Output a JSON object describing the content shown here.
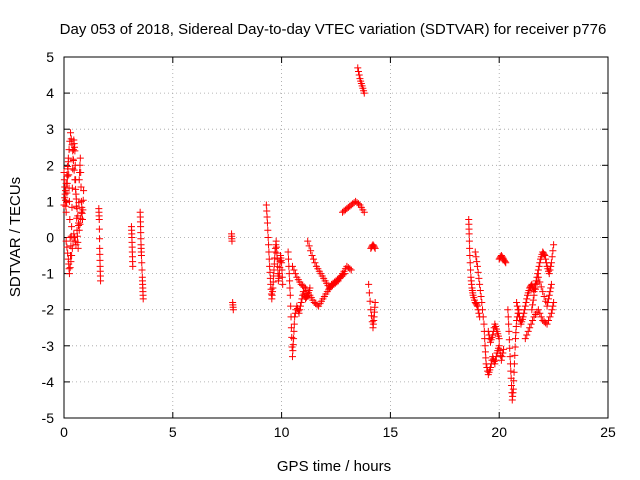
{
  "chart_data": {
    "type": "scatter",
    "title": "Day 053 of 2018, Sidereal Day-to-day VTEC variation (SDTVAR) for receiver p776",
    "xlabel": "GPS time / hours",
    "ylabel": "SDTVAR / TECUs",
    "xlim": [
      0,
      25
    ],
    "ylim": [
      -5,
      5
    ],
    "x_ticks": [
      0,
      5,
      10,
      15,
      20,
      25
    ],
    "y_ticks": [
      -5,
      -4,
      -3,
      -2,
      -1,
      0,
      1,
      2,
      3,
      4,
      5
    ],
    "x_tick_labels": [
      "0",
      "5",
      "10",
      "15",
      "20",
      "25"
    ],
    "y_tick_labels": [
      "-5",
      "-4",
      "-3",
      "-2",
      "-1",
      "0",
      "1",
      "2",
      "3",
      "4",
      "5"
    ],
    "grid": true,
    "marker": "+",
    "color": "#ff0000",
    "series": [
      {
        "name": "SDTVAR",
        "tracks": [
          [
            [
              0.0,
              1.8
            ],
            [
              0.05,
              1.2
            ],
            [
              0.1,
              0.7
            ],
            [
              0.15,
              1.5
            ],
            [
              0.2,
              2.1
            ],
            [
              0.25,
              1.0
            ],
            [
              0.3,
              -0.5
            ],
            [
              0.35,
              0.3
            ],
            [
              0.4,
              1.9
            ],
            [
              0.45,
              2.7
            ],
            [
              0.5,
              2.4
            ],
            [
              0.55,
              1.2
            ],
            [
              0.6,
              0.2
            ],
            [
              0.65,
              -0.3
            ],
            [
              0.7,
              1.6
            ],
            [
              0.75,
              2.2
            ],
            [
              0.8,
              1.0
            ],
            [
              0.85,
              0.5
            ],
            [
              0.9,
              1.3
            ]
          ],
          [
            [
              0.0,
              0.9
            ],
            [
              0.1,
              1.5
            ],
            [
              0.2,
              2.2
            ],
            [
              0.3,
              2.9
            ],
            [
              0.4,
              2.4
            ],
            [
              0.5,
              1.6
            ],
            [
              0.6,
              0.8
            ],
            [
              0.7,
              0.2
            ],
            [
              0.8,
              0.7
            ]
          ],
          [
            [
              0.1,
              -0.1
            ],
            [
              0.2,
              -0.6
            ],
            [
              0.25,
              -1.0
            ],
            [
              0.35,
              -0.5
            ],
            [
              0.45,
              0.1
            ],
            [
              0.55,
              -0.2
            ]
          ],
          [
            [
              1.6,
              0.8
            ],
            [
              1.62,
              0.5
            ],
            [
              1.64,
              -0.3
            ],
            [
              1.66,
              -0.8
            ],
            [
              1.68,
              -1.2
            ]
          ],
          [
            [
              3.1,
              0.3
            ],
            [
              3.12,
              0.0
            ],
            [
              3.14,
              -0.4
            ],
            [
              3.16,
              -0.8
            ]
          ],
          [
            [
              3.5,
              0.7
            ],
            [
              3.52,
              0.3
            ],
            [
              3.54,
              -0.2
            ],
            [
              3.56,
              -0.5
            ],
            [
              3.6,
              -1.1
            ],
            [
              3.62,
              -1.4
            ],
            [
              3.64,
              -1.7
            ]
          ],
          [
            [
              7.7,
              0.1
            ],
            [
              7.72,
              -0.1
            ]
          ],
          [
            [
              7.75,
              -1.8
            ],
            [
              7.78,
              -2.0
            ]
          ],
          [
            [
              9.3,
              0.9
            ],
            [
              9.35,
              0.4
            ],
            [
              9.4,
              -0.2
            ],
            [
              9.45,
              -0.8
            ],
            [
              9.5,
              -1.3
            ],
            [
              9.55,
              -1.7
            ],
            [
              9.6,
              -1.4
            ],
            [
              9.65,
              -0.9
            ],
            [
              9.7,
              -0.4
            ],
            [
              9.75,
              -0.1
            ],
            [
              9.8,
              -0.6
            ],
            [
              9.85,
              -1.2
            ],
            [
              9.9,
              -1.0
            ],
            [
              9.95,
              -0.5
            ],
            [
              10.0,
              -0.7
            ],
            [
              10.05,
              -1.3
            ]
          ],
          [
            [
              10.3,
              -0.4
            ],
            [
              10.35,
              -1.0
            ],
            [
              10.4,
              -1.6
            ],
            [
              10.45,
              -2.5
            ],
            [
              10.5,
              -3.3
            ],
            [
              10.55,
              -2.8
            ],
            [
              10.6,
              -2.2
            ],
            [
              10.7,
              -1.9
            ],
            [
              10.8,
              -2.1
            ],
            [
              10.9,
              -1.8
            ],
            [
              11.0,
              -1.5
            ],
            [
              11.1,
              -1.7
            ],
            [
              11.2,
              -1.6
            ],
            [
              11.3,
              -1.4
            ]
          ],
          [
            [
              10.5,
              -0.8
            ],
            [
              10.7,
              -1.1
            ],
            [
              10.9,
              -1.3
            ],
            [
              11.1,
              -1.4
            ],
            [
              11.3,
              -1.6
            ],
            [
              11.5,
              -1.8
            ],
            [
              11.7,
              -1.9
            ],
            [
              11.9,
              -1.7
            ],
            [
              12.1,
              -1.5
            ],
            [
              12.3,
              -1.3
            ],
            [
              12.5,
              -1.2
            ],
            [
              12.7,
              -1.1
            ],
            [
              12.9,
              -1.0
            ]
          ],
          [
            [
              11.2,
              -0.1
            ],
            [
              11.4,
              -0.5
            ],
            [
              11.6,
              -0.8
            ],
            [
              11.8,
              -1.0
            ],
            [
              12.0,
              -1.2
            ],
            [
              12.2,
              -1.4
            ],
            [
              12.4,
              -1.3
            ],
            [
              12.6,
              -1.2
            ],
            [
              12.8,
              -1.0
            ],
            [
              13.0,
              -0.8
            ],
            [
              13.2,
              -0.9
            ]
          ],
          [
            [
              12.8,
              0.7
            ],
            [
              13.0,
              0.8
            ],
            [
              13.2,
              0.9
            ],
            [
              13.4,
              1.0
            ],
            [
              13.6,
              0.9
            ],
            [
              13.8,
              0.7
            ]
          ],
          [
            [
              13.5,
              4.7
            ],
            [
              13.6,
              4.4
            ],
            [
              13.7,
              4.2
            ],
            [
              13.8,
              4.0
            ]
          ],
          [
            [
              14.0,
              -1.3
            ],
            [
              14.1,
              -2.0
            ],
            [
              14.2,
              -2.5
            ],
            [
              14.25,
              -2.2
            ],
            [
              14.3,
              -1.8
            ]
          ],
          [
            [
              14.1,
              -0.3
            ],
            [
              14.2,
              -0.2
            ],
            [
              14.3,
              -0.3
            ]
          ],
          [
            [
              18.6,
              0.5
            ],
            [
              18.62,
              0.1
            ],
            [
              18.65,
              -0.5
            ],
            [
              18.7,
              -1.1
            ],
            [
              18.75,
              -1.4
            ],
            [
              18.8,
              -1.6
            ],
            [
              18.9,
              -1.8
            ],
            [
              19.0,
              -1.9
            ],
            [
              19.1,
              -2.2
            ]
          ],
          [
            [
              18.9,
              -0.4
            ],
            [
              19.0,
              -0.8
            ],
            [
              19.1,
              -1.3
            ],
            [
              19.2,
              -1.8
            ],
            [
              19.3,
              -2.4
            ],
            [
              19.35,
              -3.0
            ],
            [
              19.4,
              -3.5
            ],
            [
              19.5,
              -3.8
            ],
            [
              19.6,
              -3.6
            ],
            [
              19.7,
              -3.3
            ],
            [
              19.8,
              -3.5
            ],
            [
              19.9,
              -3.2
            ],
            [
              20.0,
              -3.0
            ],
            [
              20.1,
              -3.4
            ],
            [
              20.2,
              -3.1
            ]
          ],
          [
            [
              19.5,
              -2.6
            ],
            [
              19.6,
              -2.9
            ],
            [
              19.7,
              -2.7
            ],
            [
              19.8,
              -2.4
            ],
            [
              19.9,
              -2.6
            ],
            [
              20.0,
              -2.8
            ]
          ],
          [
            [
              20.0,
              -0.6
            ],
            [
              20.1,
              -0.5
            ],
            [
              20.2,
              -0.6
            ],
            [
              20.3,
              -0.7
            ]
          ],
          [
            [
              20.4,
              -2.0
            ],
            [
              20.45,
              -2.6
            ],
            [
              20.5,
              -3.3
            ],
            [
              20.55,
              -3.9
            ],
            [
              20.6,
              -4.5
            ],
            [
              20.65,
              -4.2
            ],
            [
              20.7,
              -3.5
            ],
            [
              20.75,
              -2.8
            ],
            [
              20.8,
              -2.3
            ],
            [
              20.9,
              -2.0
            ]
          ],
          [
            [
              20.8,
              -1.8
            ],
            [
              20.9,
              -2.1
            ],
            [
              21.0,
              -2.4
            ],
            [
              21.1,
              -2.2
            ],
            [
              21.2,
              -1.9
            ],
            [
              21.3,
              -1.6
            ],
            [
              21.4,
              -1.4
            ],
            [
              21.5,
              -1.3
            ],
            [
              21.6,
              -1.5
            ],
            [
              21.7,
              -1.2
            ],
            [
              21.8,
              -0.9
            ],
            [
              21.9,
              -0.6
            ],
            [
              22.0,
              -0.4
            ],
            [
              22.1,
              -0.5
            ],
            [
              22.2,
              -0.8
            ],
            [
              22.3,
              -1.0
            ],
            [
              22.4,
              -0.7
            ],
            [
              22.5,
              -0.2
            ]
          ],
          [
            [
              21.2,
              -2.8
            ],
            [
              21.4,
              -2.5
            ],
            [
              21.6,
              -2.2
            ],
            [
              21.8,
              -2.0
            ],
            [
              22.0,
              -2.3
            ],
            [
              22.2,
              -2.4
            ],
            [
              22.4,
              -2.1
            ],
            [
              22.5,
              -1.8
            ]
          ],
          [
            [
              21.5,
              -2.0
            ],
            [
              21.6,
              -1.6
            ],
            [
              21.8,
              -1.1
            ],
            [
              22.0,
              -1.5
            ],
            [
              22.2,
              -1.9
            ],
            [
              22.3,
              -1.6
            ],
            [
              22.4,
              -1.3
            ]
          ]
        ]
      }
    ]
  }
}
